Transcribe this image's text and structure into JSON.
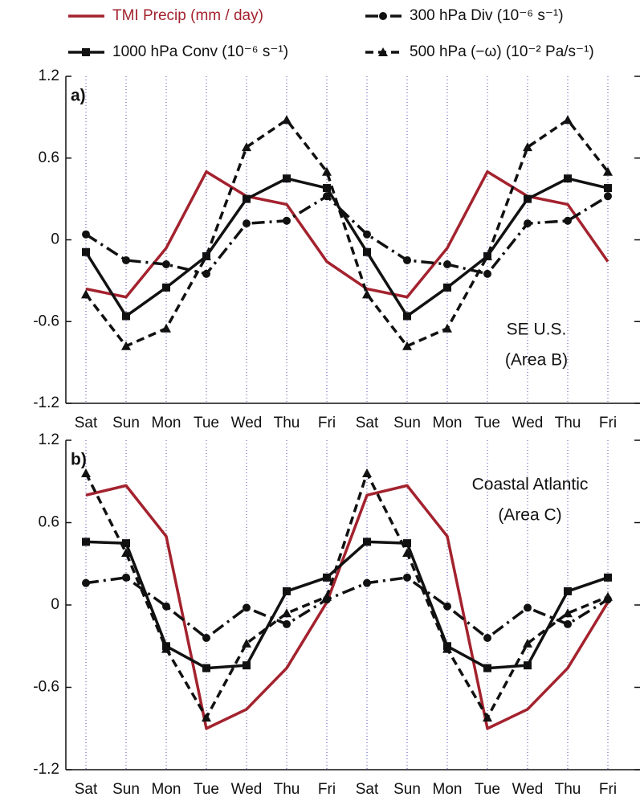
{
  "chart_data": [
    {
      "type": "line",
      "panel_label": "a)",
      "annotation": [
        "SE U.S.",
        "(Area B)"
      ],
      "categories": [
        "Sat",
        "Sun",
        "Mon",
        "Tue",
        "Wed",
        "Thu",
        "Fri",
        "Sat",
        "Sun",
        "Mon",
        "Tue",
        "Wed",
        "Thu",
        "Fri"
      ],
      "ylim": [
        -1.2,
        1.2
      ],
      "yticks": [
        -1.2,
        -0.6,
        0,
        0.6,
        1.2
      ],
      "grid": true,
      "series": [
        {
          "name": "TMI Precip (mm / day)",
          "color": "#a3222e",
          "dash": "solid",
          "marker": "none",
          "values": [
            -0.36,
            -0.42,
            -0.06,
            0.5,
            0.32,
            0.26,
            -0.16,
            -0.36,
            -0.42,
            -0.06,
            0.5,
            0.32,
            0.26,
            -0.16
          ]
        },
        {
          "name": "1000 hPa Conv (10⁻⁶ s⁻¹)",
          "color": "#111111",
          "dash": "solid",
          "marker": "square",
          "values": [
            -0.09,
            -0.56,
            -0.35,
            -0.12,
            0.3,
            0.45,
            0.38,
            -0.09,
            -0.56,
            -0.35,
            -0.12,
            0.3,
            0.45,
            0.38
          ]
        },
        {
          "name": "300 hPa Div (10⁻⁶ s⁻¹)",
          "color": "#111111",
          "dash": "dash-dot",
          "marker": "circle",
          "values": [
            0.04,
            -0.15,
            -0.18,
            -0.25,
            0.12,
            0.14,
            0.32,
            0.04,
            -0.15,
            -0.18,
            -0.25,
            0.12,
            0.14,
            0.32
          ]
        },
        {
          "name": "500 hPa (−ω) (10⁻² Pa/s⁻¹)",
          "color": "#111111",
          "dash": "dashed",
          "marker": "triangle",
          "values": [
            -0.4,
            -0.78,
            -0.65,
            -0.12,
            0.68,
            0.88,
            0.5,
            -0.4,
            -0.78,
            -0.65,
            -0.12,
            0.68,
            0.88,
            0.5
          ]
        }
      ]
    },
    {
      "type": "line",
      "panel_label": "b)",
      "annotation": [
        "Coastal Atlantic",
        "(Area C)"
      ],
      "categories": [
        "Sat",
        "Sun",
        "Mon",
        "Tue",
        "Wed",
        "Thu",
        "Fri",
        "Sat",
        "Sun",
        "Mon",
        "Tue",
        "Wed",
        "Thu",
        "Fri"
      ],
      "ylim": [
        -1.2,
        1.2
      ],
      "yticks": [
        -1.2,
        -0.6,
        0,
        0.6,
        1.2
      ],
      "grid": true,
      "series": [
        {
          "color": "#a3222e",
          "dash": "solid",
          "marker": "none",
          "values": [
            0.8,
            0.87,
            0.5,
            -0.9,
            -0.76,
            -0.46,
            0.02,
            0.8,
            0.87,
            0.5,
            -0.9,
            -0.76,
            -0.46,
            0.02
          ]
        },
        {
          "color": "#111111",
          "dash": "solid",
          "marker": "square",
          "values": [
            0.46,
            0.45,
            -0.3,
            -0.46,
            -0.44,
            0.1,
            0.2,
            0.46,
            0.45,
            -0.3,
            -0.46,
            -0.44,
            0.1,
            0.2
          ]
        },
        {
          "color": "#111111",
          "dash": "dash-dot",
          "marker": "circle",
          "values": [
            0.16,
            0.2,
            -0.01,
            -0.24,
            -0.02,
            -0.14,
            0.04,
            0.16,
            0.2,
            -0.01,
            -0.24,
            -0.02,
            -0.14,
            0.04
          ]
        },
        {
          "color": "#111111",
          "dash": "dashed",
          "marker": "triangle",
          "values": [
            0.96,
            0.38,
            -0.32,
            -0.82,
            -0.28,
            -0.06,
            0.06,
            0.96,
            0.38,
            -0.32,
            -0.82,
            -0.28,
            -0.06,
            0.06
          ]
        }
      ]
    }
  ]
}
